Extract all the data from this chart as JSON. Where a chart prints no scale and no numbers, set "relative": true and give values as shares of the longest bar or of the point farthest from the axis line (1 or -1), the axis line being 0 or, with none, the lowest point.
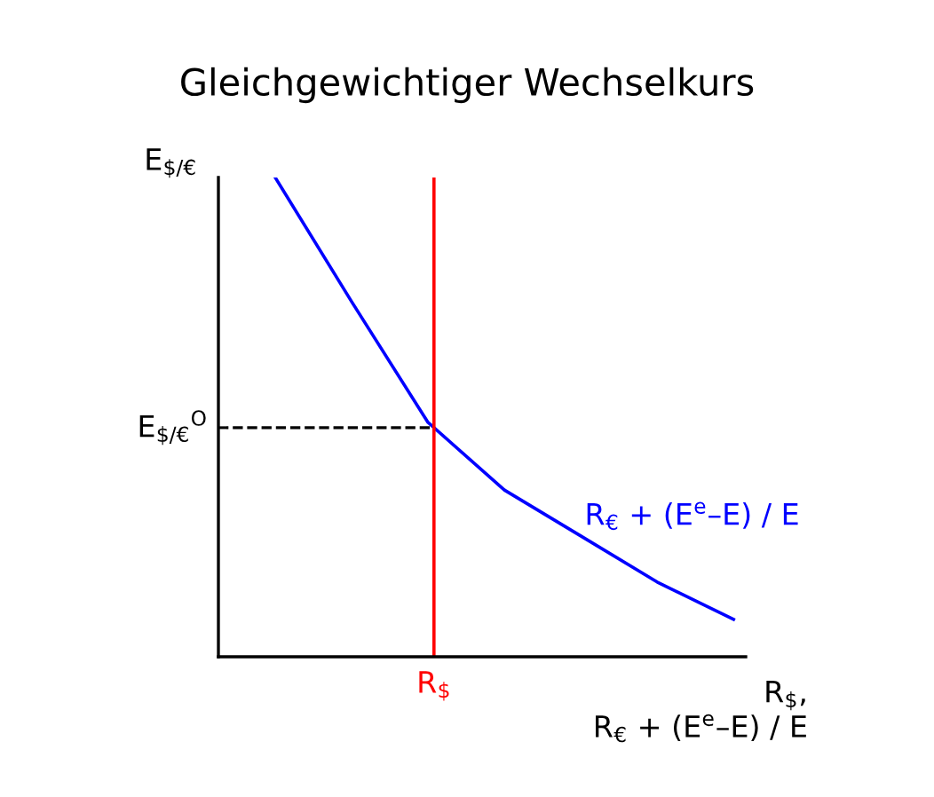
{
  "chart_data": {
    "type": "line",
    "title": "Gleichgewichtiger Wechselkurs",
    "relative": true,
    "categories": [
      null,
      null,
      null,
      null,
      null,
      null,
      null
    ],
    "series": [
      {
        "name": "R$_{€}$ + (E$^{e}$–E) / E",
        "color": "#0000ff",
        "values": [
          1.0,
          0.741,
          0.489,
          0.348,
          0.252,
          0.156,
          0.078
        ]
      }
    ],
    "ref_lines": [
      {
        "axis": "y",
        "value": 0.478,
        "label": "E$_{$/€}$$^{O}$",
        "color": "#000000",
        "line_style": "dashed"
      }
    ],
    "xlabel": "R$_{$}$,\nR$_{€}$ + (E$^{e}$–E) / E",
    "ylabel": "E$_{$/€}$",
    "annotations": [
      "R$_{$}$"
    ],
    "grid": false,
    "legend": false,
    "marker": "none",
    "line_style": "solid"
  }
}
